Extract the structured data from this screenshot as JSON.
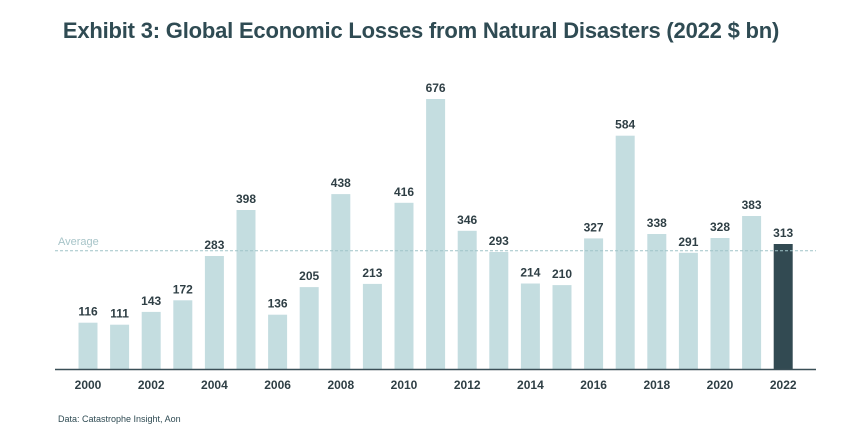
{
  "title": "Exhibit 3: Global Economic Losses from Natural Disasters (2022 $ bn)",
  "source": "Data: Catastrophe Insight, Aon",
  "colors": {
    "bar": "#c4dde0",
    "highlight": "#324a52",
    "axis": "#3a4f57",
    "text": "#2f3f45",
    "reference": "#9fc3c7",
    "reference_label": "#a7c4c8"
  },
  "chart_data": {
    "type": "bar",
    "categories": [
      "2000",
      "2001",
      "2002",
      "2003",
      "2004",
      "2005",
      "2006",
      "2007",
      "2008",
      "2009",
      "2010",
      "2011",
      "2012",
      "2013",
      "2014",
      "2015",
      "2016",
      "2017",
      "2018",
      "2019",
      "2020",
      "2021",
      "2022"
    ],
    "values": [
      116,
      111,
      143,
      172,
      283,
      398,
      136,
      205,
      438,
      213,
      416,
      676,
      346,
      293,
      214,
      210,
      327,
      584,
      338,
      291,
      328,
      383,
      313
    ],
    "tick_labels": [
      "2000",
      "2002",
      "2004",
      "2006",
      "2008",
      "2010",
      "2012",
      "2014",
      "2016",
      "2018",
      "2020",
      "2022"
    ],
    "highlight_category": "2022",
    "reference_line": {
      "label": "Average",
      "value": 296
    },
    "xlabel": "",
    "ylabel": "",
    "ylim": [
      0,
      676
    ],
    "grid": false,
    "legend": "none"
  }
}
